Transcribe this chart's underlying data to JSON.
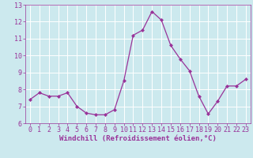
{
  "x": [
    0,
    1,
    2,
    3,
    4,
    5,
    6,
    7,
    8,
    9,
    10,
    11,
    12,
    13,
    14,
    15,
    16,
    17,
    18,
    19,
    20,
    21,
    22,
    23
  ],
  "y": [
    7.4,
    7.8,
    7.6,
    7.6,
    7.8,
    7.0,
    6.6,
    6.5,
    6.5,
    6.8,
    8.5,
    11.2,
    11.5,
    12.6,
    12.1,
    10.6,
    9.8,
    9.1,
    7.6,
    6.55,
    7.3,
    8.2,
    8.2,
    8.6
  ],
  "line_color": "#993399",
  "marker": "D",
  "marker_size": 2.0,
  "line_width": 0.9,
  "bg_color": "#cce9ee",
  "grid_color": "#ffffff",
  "xlabel": "Windchill (Refroidissement éolien,°C)",
  "xlabel_color": "#993399",
  "tick_color": "#993399",
  "xlim": [
    -0.5,
    23.5
  ],
  "ylim": [
    6,
    13
  ],
  "yticks": [
    6,
    7,
    8,
    9,
    10,
    11,
    12,
    13
  ],
  "xticks": [
    0,
    1,
    2,
    3,
    4,
    5,
    6,
    7,
    8,
    9,
    10,
    11,
    12,
    13,
    14,
    15,
    16,
    17,
    18,
    19,
    20,
    21,
    22,
    23
  ],
  "tick_fontsize": 6.0,
  "xlabel_fontsize": 6.5
}
